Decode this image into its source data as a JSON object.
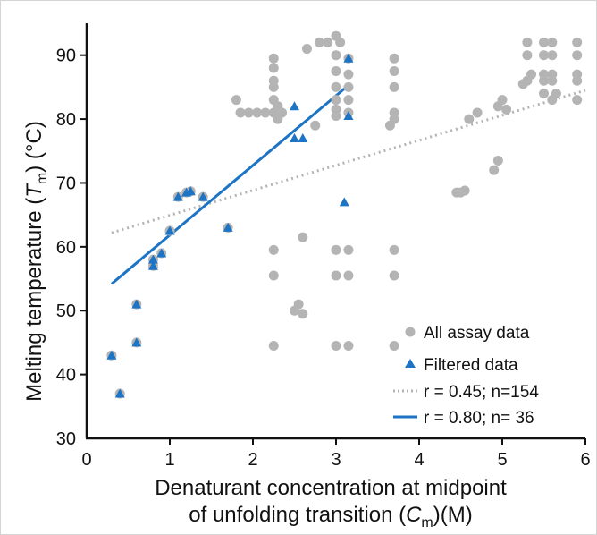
{
  "chart_data": {
    "type": "scatter",
    "xlabel": {
      "main": "Denaturant concentration at midpoint",
      "sub_prefix": "of unfolding transition (",
      "sub_italic": "C",
      "sub_subscript": "m",
      "sub_suffix": ")(M)"
    },
    "ylabel": {
      "prefix": "Melting temperature (",
      "italic": "T",
      "subscript": "m",
      "suffix": ") (°C)"
    },
    "xlim": [
      0,
      6
    ],
    "ylim": [
      30,
      95
    ],
    "xticks": [
      "0",
      "1",
      "2",
      "3",
      "4",
      "5",
      "6"
    ],
    "yticks": [
      "30",
      "40",
      "50",
      "60",
      "70",
      "80",
      "90"
    ],
    "grid": false,
    "legend_position": "bottom-right",
    "series": [
      {
        "name": "All assay data",
        "marker": "circle",
        "color": "#b4b4b4",
        "points": [
          [
            0.3,
            43
          ],
          [
            0.4,
            37
          ],
          [
            0.6,
            51
          ],
          [
            0.6,
            45
          ],
          [
            0.8,
            57
          ],
          [
            0.8,
            58
          ],
          [
            0.9,
            59
          ],
          [
            1.0,
            62.5
          ],
          [
            1.1,
            67.8
          ],
          [
            1.2,
            68.5
          ],
          [
            1.25,
            68.7
          ],
          [
            1.4,
            67.8
          ],
          [
            1.7,
            63
          ],
          [
            1.8,
            83
          ],
          [
            1.85,
            81
          ],
          [
            1.95,
            81
          ],
          [
            2.05,
            81
          ],
          [
            2.15,
            81
          ],
          [
            2.25,
            81
          ],
          [
            2.3,
            80
          ],
          [
            2.3,
            81.5
          ],
          [
            2.3,
            82
          ],
          [
            2.25,
            89.5
          ],
          [
            2.25,
            88
          ],
          [
            2.25,
            86
          ],
          [
            2.25,
            85
          ],
          [
            2.25,
            83
          ],
          [
            2.25,
            59.5
          ],
          [
            2.25,
            55.5
          ],
          [
            2.25,
            44.5
          ],
          [
            2.35,
            81
          ],
          [
            2.5,
            50
          ],
          [
            2.55,
            51
          ],
          [
            2.6,
            49.5
          ],
          [
            2.6,
            61.5
          ],
          [
            2.65,
            91
          ],
          [
            2.75,
            79
          ],
          [
            2.8,
            92
          ],
          [
            2.9,
            92
          ],
          [
            3.0,
            93
          ],
          [
            3.05,
            92
          ],
          [
            3.0,
            90
          ],
          [
            3.0,
            87.5
          ],
          [
            3.0,
            85
          ],
          [
            3.0,
            83
          ],
          [
            3.0,
            81.5
          ],
          [
            3.0,
            80.5
          ],
          [
            3.0,
            59.5
          ],
          [
            3.0,
            55.5
          ],
          [
            3.0,
            44.5
          ],
          [
            3.15,
            89.5
          ],
          [
            3.15,
            87
          ],
          [
            3.15,
            85
          ],
          [
            3.15,
            83
          ],
          [
            3.15,
            81
          ],
          [
            3.15,
            59.5
          ],
          [
            3.15,
            55.5
          ],
          [
            3.15,
            44.5
          ],
          [
            3.65,
            79
          ],
          [
            3.7,
            89.5
          ],
          [
            3.7,
            87.5
          ],
          [
            3.7,
            85
          ],
          [
            3.7,
            81
          ],
          [
            3.7,
            80
          ],
          [
            3.7,
            59.5
          ],
          [
            3.7,
            55.5
          ],
          [
            3.7,
            44.5
          ],
          [
            4.45,
            68.5
          ],
          [
            4.5,
            68.5
          ],
          [
            4.55,
            68.8
          ],
          [
            4.6,
            80
          ],
          [
            4.7,
            81
          ],
          [
            4.9,
            72
          ],
          [
            4.95,
            73.5
          ],
          [
            4.95,
            82
          ],
          [
            5.0,
            83
          ],
          [
            5.05,
            81.5
          ],
          [
            5.25,
            85.5
          ],
          [
            5.3,
            86
          ],
          [
            5.35,
            87
          ],
          [
            5.3,
            90
          ],
          [
            5.3,
            92
          ],
          [
            5.5,
            92
          ],
          [
            5.5,
            90
          ],
          [
            5.5,
            87
          ],
          [
            5.5,
            86
          ],
          [
            5.5,
            84
          ],
          [
            5.6,
            92
          ],
          [
            5.6,
            90
          ],
          [
            5.6,
            87
          ],
          [
            5.6,
            86
          ],
          [
            5.6,
            83
          ],
          [
            5.65,
            84
          ],
          [
            5.9,
            92
          ],
          [
            5.9,
            90
          ],
          [
            5.9,
            87
          ],
          [
            5.9,
            86
          ],
          [
            5.9,
            83
          ]
        ]
      },
      {
        "name": "Filtered data",
        "marker": "triangle",
        "color": "#1d74c4",
        "points": [
          [
            0.3,
            43
          ],
          [
            0.4,
            37
          ],
          [
            0.6,
            51
          ],
          [
            0.6,
            45
          ],
          [
            0.8,
            57
          ],
          [
            0.8,
            58
          ],
          [
            0.9,
            59
          ],
          [
            1.0,
            62.5
          ],
          [
            1.1,
            67.8
          ],
          [
            1.2,
            68.5
          ],
          [
            1.25,
            68.7
          ],
          [
            1.4,
            67.8
          ],
          [
            1.7,
            63
          ],
          [
            2.5,
            82
          ],
          [
            2.5,
            77
          ],
          [
            2.6,
            77
          ],
          [
            3.1,
            67
          ],
          [
            3.15,
            89.5
          ],
          [
            3.15,
            80.5
          ]
        ]
      }
    ],
    "fits": [
      {
        "name": "r = 0.45; n=154",
        "style": "dotted",
        "color": "#b4b4b4",
        "x": [
          0.3,
          6.0
        ],
        "y": [
          62.2,
          84.5
        ]
      },
      {
        "name": "r = 0.80; n= 36",
        "style": "solid",
        "color": "#1d74c4",
        "x": [
          0.3,
          3.15
        ],
        "y": [
          54.2,
          85.3
        ]
      }
    ]
  }
}
